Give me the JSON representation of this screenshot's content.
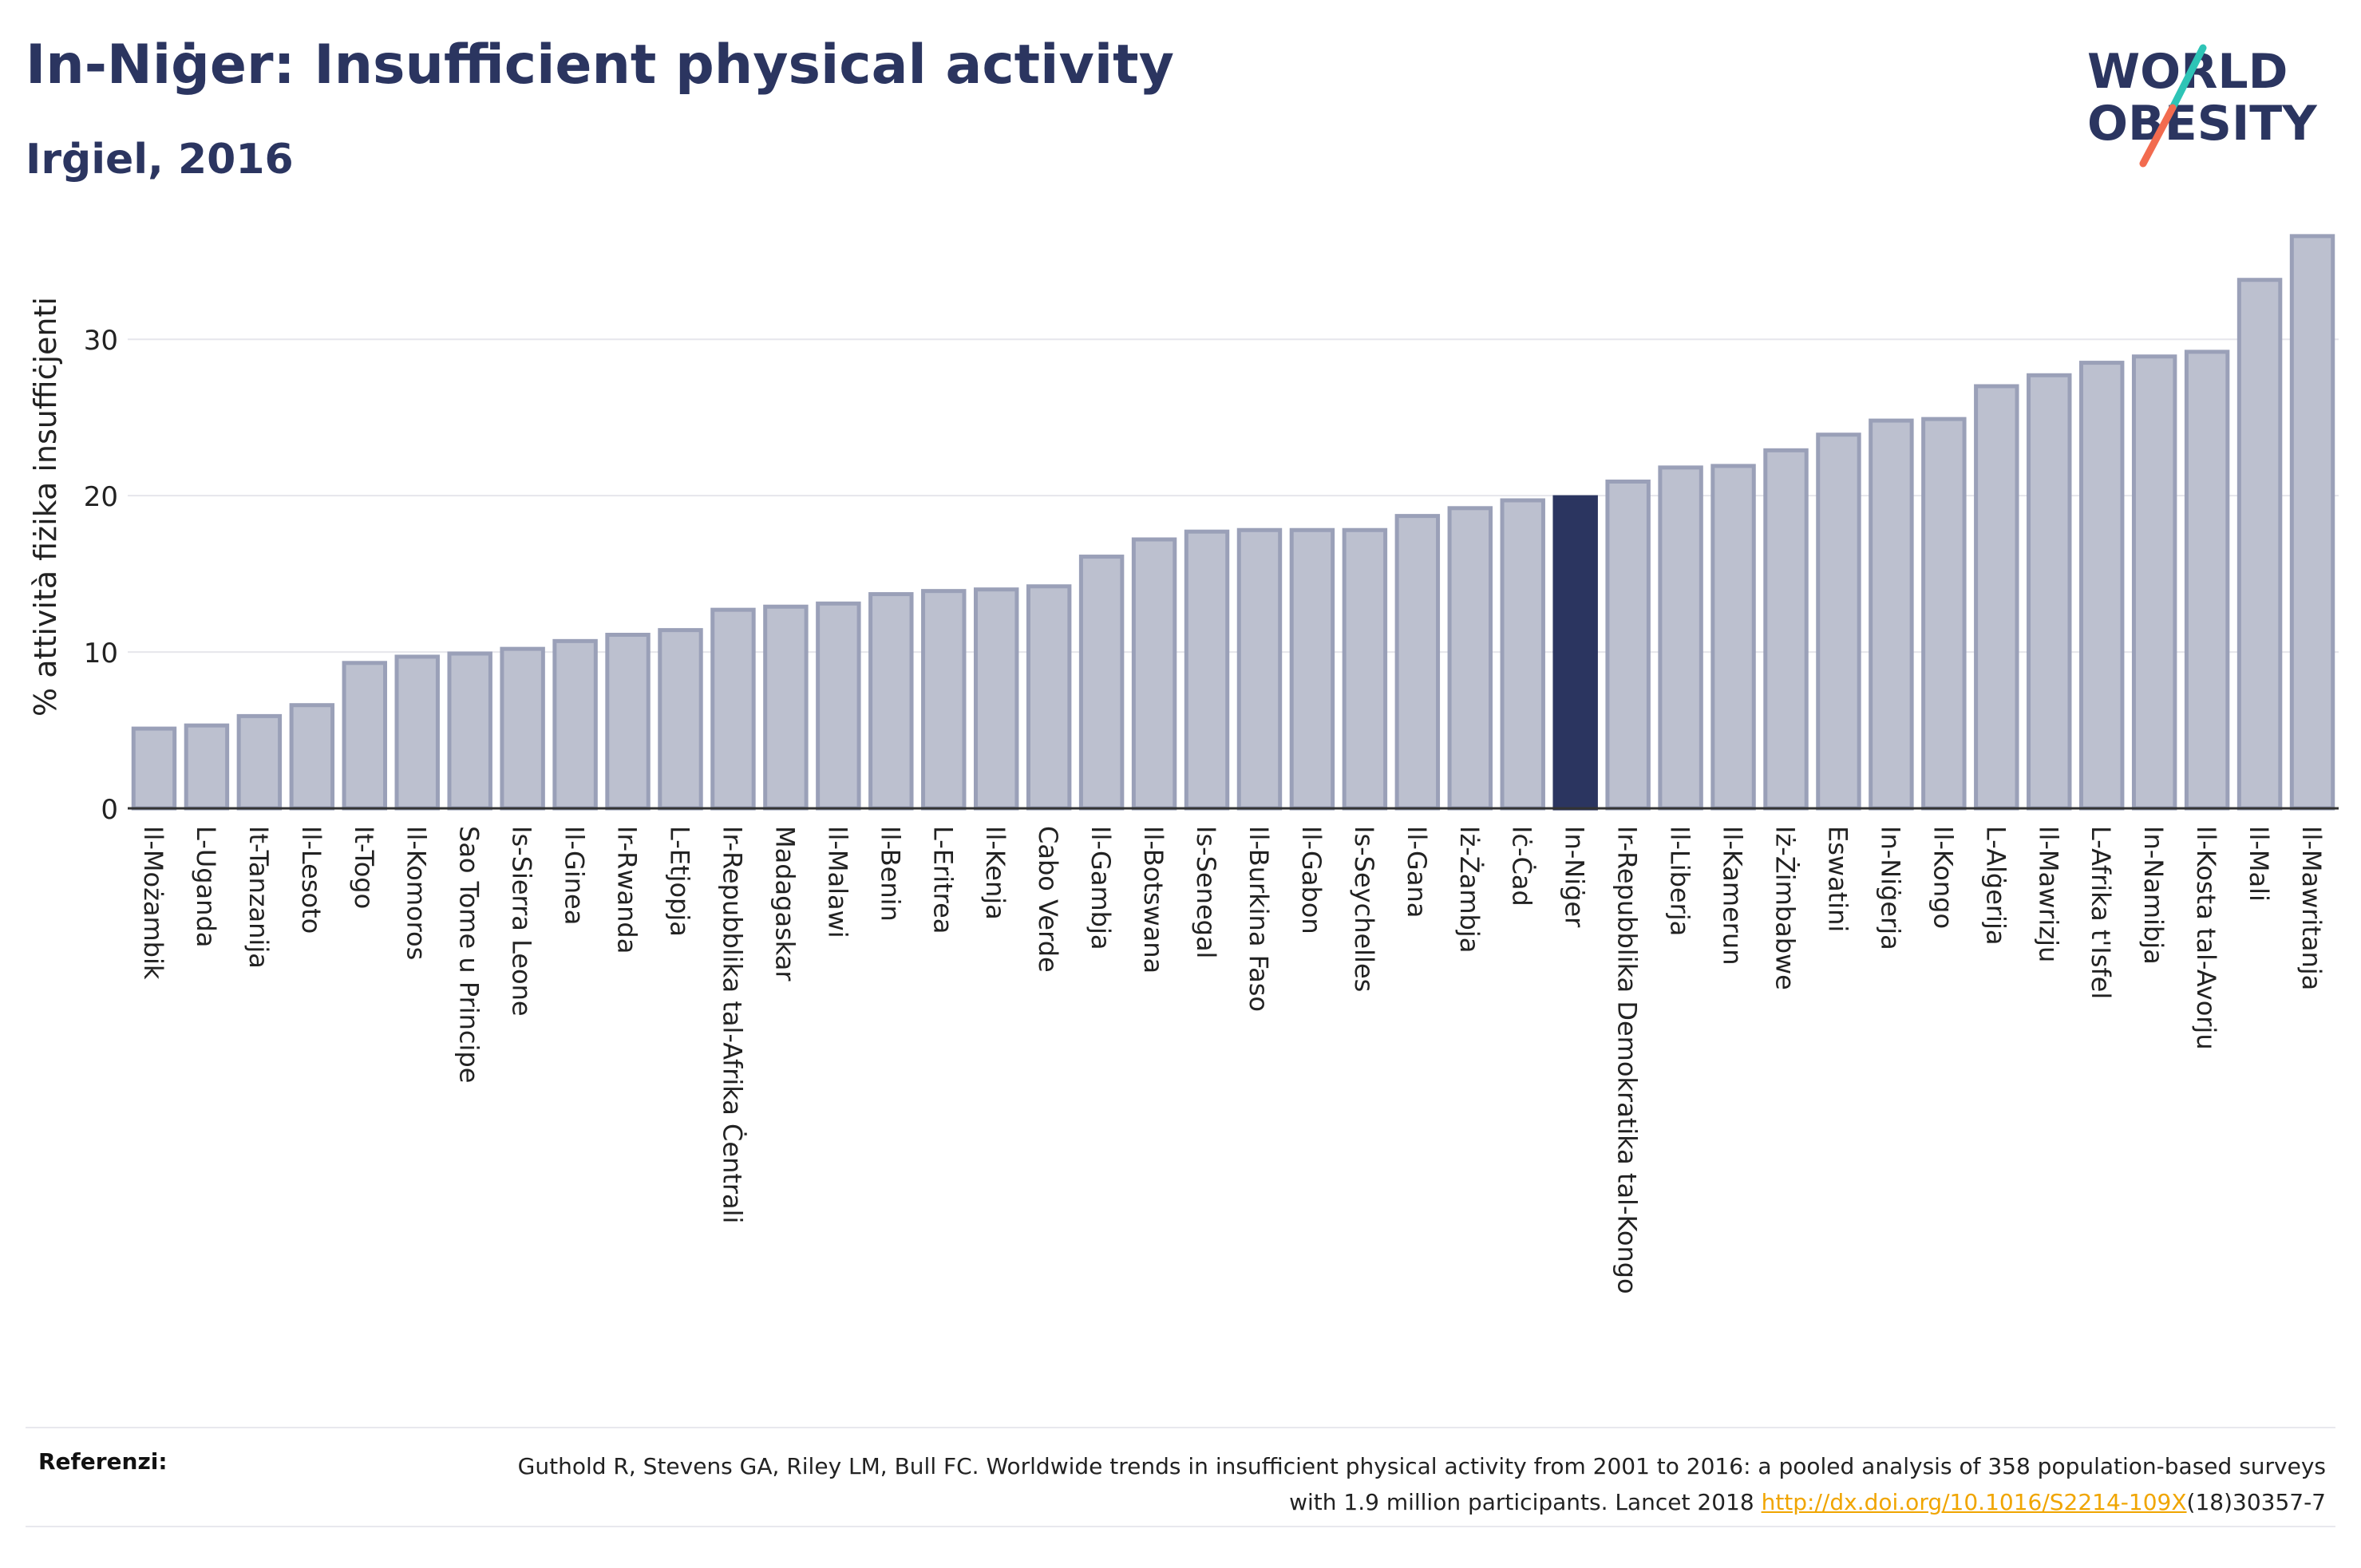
{
  "header": {
    "title": "In-Niġer: Insufficient physical activity",
    "subtitle": "Irġiel, 2016"
  },
  "logo": {
    "line1": "WORLD",
    "line2": "OBESITY",
    "colors": {
      "text": "#2b3560",
      "slash_top": "#2ec4b6",
      "slash_bottom": "#f26b4f"
    }
  },
  "colors": {
    "bar_fill": "#bcc0cf",
    "bar_stroke": "#9aa0b8",
    "highlight": "#2b3560",
    "grid": "#e6e6ec",
    "axis": "#333333"
  },
  "chart_data": {
    "type": "bar",
    "ylabel": "% attività fiżika insuffiċjenti",
    "ylim": [
      0,
      37
    ],
    "yticks": [
      0,
      10,
      20,
      30
    ],
    "highlight": "In-Niġer",
    "grid": true,
    "categories": [
      "Il-Możambik",
      "L-Uganda",
      "It-Tanzanija",
      "Il-Lesoto",
      "It-Togo",
      "Il-Komoros",
      "Sao Tome u Principe",
      "Is-Sierra Leone",
      "Il-Ginea",
      "Ir-Rwanda",
      "L-Etjopja",
      "Ir-Repubblika tal-Afrika Ċentrali",
      "Madagaskar",
      "Il-Malawi",
      "Il-Benin",
      "L-Eritrea",
      "Il-Kenja",
      "Cabo Verde",
      "Il-Gambja",
      "Il-Botswana",
      "Is-Senegal",
      "Il-Burkina Faso",
      "Il-Gabon",
      "Is-Seychelles",
      "Il-Gana",
      "Iż-Żambja",
      "Iċ-Ċad",
      "In-Niġer",
      "Ir-Repubblika Demokratika tal-Kongo",
      "Il-Liberja",
      "Il-Kamerun",
      "Iż-Żimbabwe",
      "Eswatini",
      "In-Niġerja",
      "Il-Kongo",
      "L-Alġerija",
      "Il-Mawrizju",
      "L-Afrika t'Isfel",
      "In-Namibja",
      "Il-Kosta tal-Avorju",
      "Il-Mali",
      "Il-Mawritanja"
    ],
    "values": [
      5.1,
      5.3,
      5.9,
      6.6,
      9.3,
      9.7,
      9.9,
      10.2,
      10.7,
      11.1,
      11.4,
      12.7,
      12.9,
      13.1,
      13.7,
      13.9,
      14.0,
      14.2,
      16.1,
      17.2,
      17.7,
      17.8,
      17.8,
      17.8,
      18.7,
      19.2,
      19.7,
      19.9,
      20.9,
      21.8,
      21.9,
      22.9,
      23.9,
      24.8,
      24.9,
      27.0,
      27.7,
      28.5,
      28.9,
      29.2,
      33.8,
      36.6
    ]
  },
  "references": {
    "label": "Referenzi:",
    "text": "Guthold R, Stevens GA, Riley LM, Bull FC. Worldwide trends in insufficient physical activity from 2001 to 2016: a pooled analysis of 358 population-based surveys with 1.9 million participants. Lancet 2018 ",
    "link_text": "http://dx.doi.org/10.1016/S2214-109X",
    "suffix": "(18)30357-7"
  }
}
